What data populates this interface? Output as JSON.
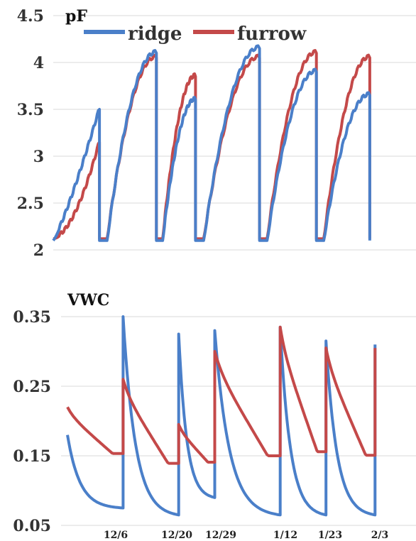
{
  "colors": {
    "ridge": "#4a7fc9",
    "furrow": "#c44949",
    "grid": "#d9d9d9"
  },
  "chart_data": [
    {
      "type": "line",
      "title": "pF",
      "ylim": [
        2,
        4.5
      ],
      "yticks": [
        "4.5",
        "4",
        "3.5",
        "3",
        "2.5",
        "2"
      ],
      "grid": true,
      "legend": {
        "position": "top-center",
        "entries": [
          "ridge",
          "furrow"
        ]
      },
      "segments": [
        {
          "start": 0,
          "end": 0.13,
          "ridge": [
            2.1,
            3.5
          ],
          "furrow": [
            2.12,
            3.15
          ],
          "shape": "ramp"
        },
        {
          "start": 0.14,
          "end": 0.29,
          "ridge": [
            2.1,
            4.1
          ],
          "furrow": [
            2.12,
            4.05
          ],
          "shape": "curve"
        },
        {
          "start": 0.3,
          "end": 0.4,
          "ridge": [
            2.1,
            3.6
          ],
          "furrow": [
            2.12,
            3.85
          ],
          "shape": "curve"
        },
        {
          "start": 0.41,
          "end": 0.58,
          "ridge": [
            2.1,
            4.15
          ],
          "furrow": [
            2.12,
            4.05
          ],
          "shape": "curve"
        },
        {
          "start": 0.59,
          "end": 0.74,
          "ridge": [
            2.1,
            3.9
          ],
          "furrow": [
            2.12,
            4.1
          ],
          "shape": "curve"
        },
        {
          "start": 0.75,
          "end": 0.89,
          "ridge": [
            2.1,
            3.65
          ],
          "furrow": [
            2.12,
            4.05
          ],
          "shape": "curve"
        }
      ],
      "series": [
        {
          "name": "ridge"
        },
        {
          "name": "furrow"
        }
      ]
    },
    {
      "type": "line",
      "title": "VWC",
      "ylim": [
        0.05,
        0.35
      ],
      "yticks": [
        "0.35",
        "0.25",
        "0.15",
        "0.05"
      ],
      "grid": true,
      "x_tick_labels": [
        "12/6",
        "12/20",
        "12/29",
        "1/12",
        "1/23",
        "2/3"
      ],
      "segments": [
        {
          "start": 0,
          "end": 0.17,
          "ridge": [
            0.18,
            0.075
          ],
          "furrow": [
            0.22,
            0.14
          ]
        },
        {
          "start": 0.17,
          "end": 0.34,
          "ridge": [
            0.35,
            0.065
          ],
          "furrow": [
            0.26,
            0.115
          ]
        },
        {
          "start": 0.34,
          "end": 0.45,
          "ridge": [
            0.325,
            0.09
          ],
          "furrow": [
            0.195,
            0.13
          ]
        },
        {
          "start": 0.45,
          "end": 0.65,
          "ridge": [
            0.33,
            0.065
          ],
          "furrow": [
            0.3,
            0.12
          ]
        },
        {
          "start": 0.65,
          "end": 0.79,
          "ridge": [
            0.335,
            0.065
          ],
          "furrow": [
            0.335,
            0.12
          ]
        },
        {
          "start": 0.79,
          "end": 0.94,
          "ridge": [
            0.315,
            0.065
          ],
          "furrow": [
            0.305,
            0.12
          ]
        },
        {
          "start": 0.94,
          "end": 0.94,
          "ridge": [
            0.31,
            0.31
          ],
          "furrow": [
            0.305,
            0.305
          ]
        }
      ],
      "series": [
        {
          "name": "ridge"
        },
        {
          "name": "furrow"
        }
      ]
    }
  ]
}
